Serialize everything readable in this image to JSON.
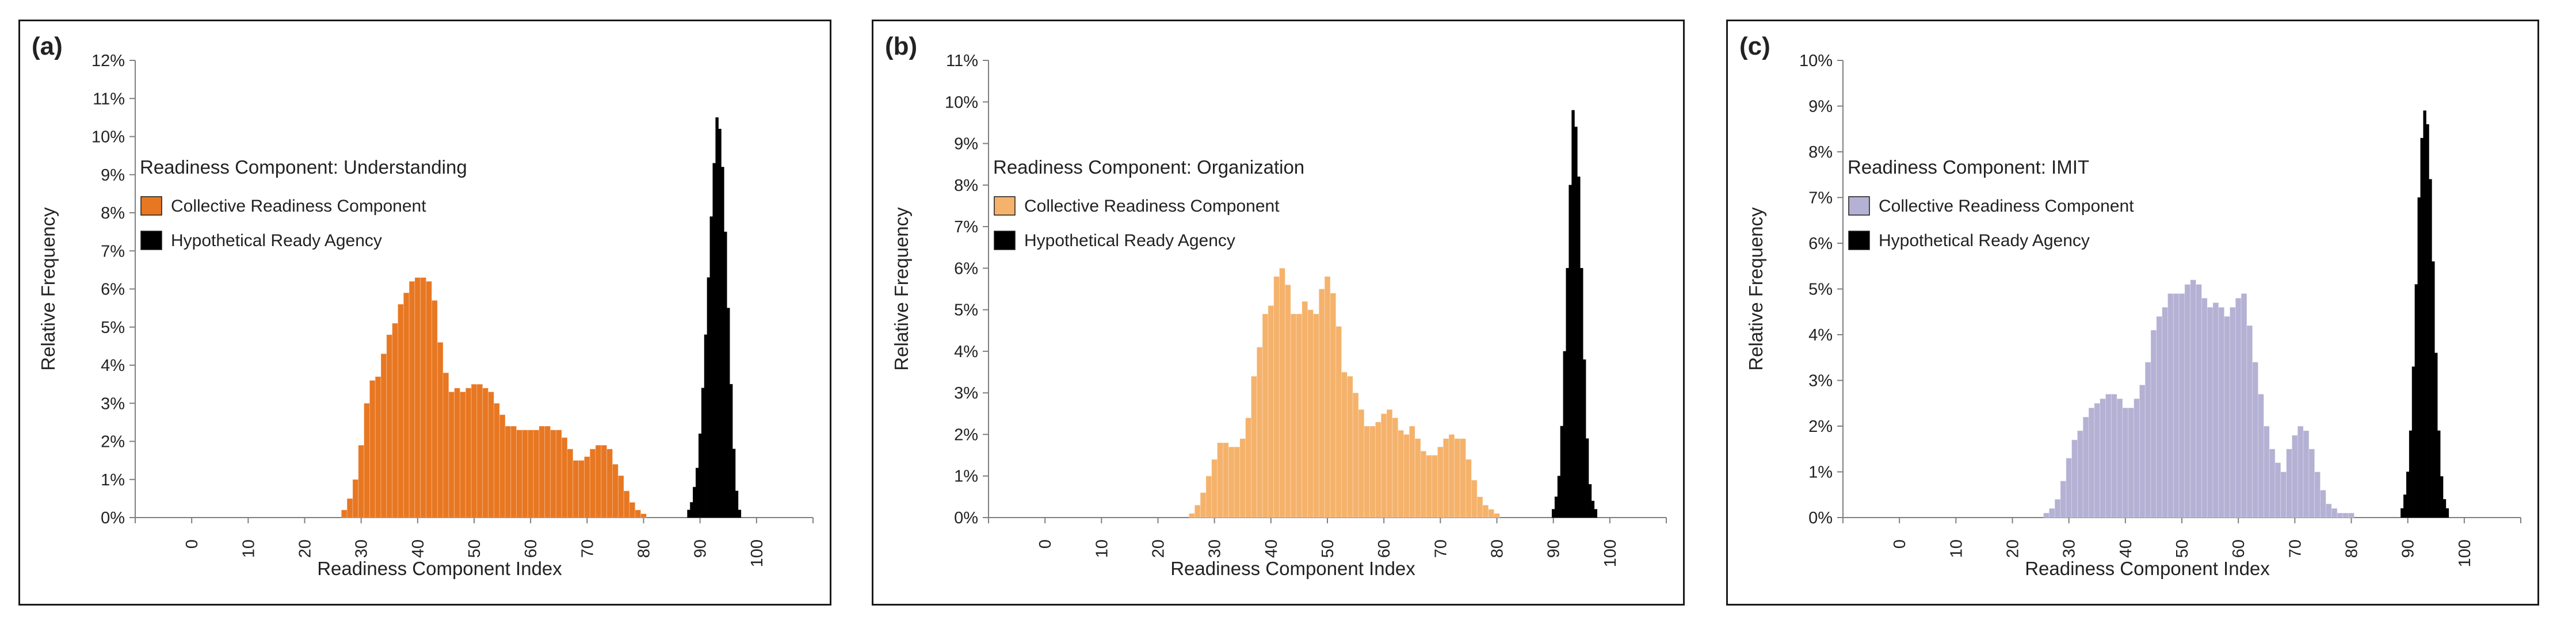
{
  "chart_data": [
    {
      "type": "bar",
      "panel_tag": "(a)",
      "legend_title": "Readiness Component: Understanding",
      "xlabel": "Readiness Component Index",
      "ylabel": "Relative Frequency",
      "xlim": [
        -10,
        110
      ],
      "ylim": [
        0,
        12
      ],
      "yticks": [
        "0%",
        "1%",
        "2%",
        "3%",
        "4%",
        "5%",
        "6%",
        "7%",
        "8%",
        "9%",
        "10%",
        "11%",
        "12%"
      ],
      "xticks": [
        "0",
        "10",
        "20",
        "30",
        "40",
        "50",
        "60",
        "70",
        "80",
        "90",
        "100"
      ],
      "grid": false,
      "legend_position": "top-left",
      "series": [
        {
          "name": "Collective Readiness Component",
          "color": "#e87722",
          "x": [
            27,
            28,
            29,
            30,
            31,
            32,
            33,
            34,
            35,
            36,
            37,
            38,
            39,
            40,
            41,
            42,
            43,
            44,
            45,
            46,
            47,
            48,
            49,
            50,
            51,
            52,
            53,
            54,
            55,
            56,
            57,
            58,
            59,
            60,
            61,
            62,
            63,
            64,
            65,
            66,
            67,
            68,
            69,
            70,
            71,
            72,
            73,
            74,
            75,
            76,
            77,
            78,
            79,
            80
          ],
          "values": [
            0.2,
            0.5,
            1.0,
            1.9,
            3.0,
            3.6,
            3.7,
            4.3,
            4.8,
            5.1,
            5.6,
            5.9,
            6.2,
            6.3,
            6.3,
            6.2,
            5.7,
            4.6,
            3.8,
            3.3,
            3.4,
            3.3,
            3.4,
            3.5,
            3.5,
            3.4,
            3.3,
            3.0,
            2.7,
            2.4,
            2.4,
            2.3,
            2.3,
            2.3,
            2.3,
            2.4,
            2.4,
            2.3,
            2.3,
            2.1,
            1.8,
            1.5,
            1.5,
            1.6,
            1.8,
            1.9,
            1.9,
            1.8,
            1.4,
            1.1,
            0.7,
            0.4,
            0.2,
            0.1
          ]
        },
        {
          "name": "Hypothetical Ready Agency",
          "color": "#000000",
          "x": [
            88,
            88.5,
            89,
            89.5,
            90,
            90.5,
            91,
            91.5,
            92,
            92.5,
            93,
            93.5,
            94,
            94.5,
            95,
            95.5,
            96,
            96.5,
            97
          ],
          "values": [
            0.2,
            0.4,
            0.8,
            1.3,
            2.2,
            3.4,
            4.8,
            6.3,
            7.9,
            9.3,
            10.5,
            10.2,
            9.2,
            7.5,
            5.5,
            3.5,
            1.8,
            0.7,
            0.2
          ]
        }
      ]
    },
    {
      "type": "bar",
      "panel_tag": "(b)",
      "legend_title": "Readiness Component: Organization",
      "xlabel": "Readiness Component Index",
      "ylabel": "Relative Frequency",
      "xlim": [
        -10,
        110
      ],
      "ylim": [
        0,
        11
      ],
      "yticks": [
        "0%",
        "1%",
        "2%",
        "3%",
        "4%",
        "5%",
        "6%",
        "7%",
        "8%",
        "9%",
        "10%",
        "11%"
      ],
      "xticks": [
        "0",
        "10",
        "20",
        "30",
        "40",
        "50",
        "60",
        "70",
        "80",
        "90",
        "100"
      ],
      "grid": false,
      "legend_position": "top-left",
      "series": [
        {
          "name": "Collective Readiness Component",
          "color": "#f5b26b",
          "x": [
            26,
            27,
            28,
            29,
            30,
            31,
            32,
            33,
            34,
            35,
            36,
            37,
            38,
            39,
            40,
            41,
            42,
            43,
            44,
            45,
            46,
            47,
            48,
            49,
            50,
            51,
            52,
            53,
            54,
            55,
            56,
            57,
            58,
            59,
            60,
            61,
            62,
            63,
            64,
            65,
            66,
            67,
            68,
            69,
            70,
            71,
            72,
            73,
            74,
            75,
            76,
            77,
            78,
            79,
            80
          ],
          "values": [
            0.1,
            0.3,
            0.6,
            1.0,
            1.4,
            1.8,
            1.8,
            1.7,
            1.7,
            1.9,
            2.4,
            3.4,
            4.1,
            4.9,
            5.1,
            5.8,
            6.0,
            5.6,
            4.9,
            4.9,
            5.2,
            5.0,
            4.9,
            5.5,
            5.8,
            5.4,
            4.6,
            3.5,
            3.4,
            3.0,
            2.6,
            2.2,
            2.2,
            2.3,
            2.5,
            2.6,
            2.4,
            2.1,
            2.0,
            2.2,
            1.9,
            1.6,
            1.5,
            1.5,
            1.7,
            1.9,
            2.0,
            1.9,
            1.9,
            1.4,
            0.9,
            0.5,
            0.3,
            0.2,
            0.1
          ]
        },
        {
          "name": "Hypothetical Ready Agency",
          "color": "#000000",
          "x": [
            90,
            90.5,
            91,
            91.5,
            92,
            92.5,
            93,
            93.5,
            94,
            94.5,
            95,
            95.5,
            96,
            96.5,
            97,
            97.5
          ],
          "values": [
            0.2,
            0.5,
            1.0,
            2.2,
            4.0,
            6.0,
            8.0,
            9.8,
            9.4,
            8.2,
            6.0,
            3.8,
            1.9,
            0.8,
            0.4,
            0.2
          ]
        }
      ]
    },
    {
      "type": "bar",
      "panel_tag": "(c)",
      "legend_title": "Readiness Component: IMIT",
      "xlabel": "Readiness Component Index",
      "ylabel": "Relative Frequency",
      "xlim": [
        -10,
        110
      ],
      "ylim": [
        0,
        10
      ],
      "yticks": [
        "0%",
        "1%",
        "2%",
        "3%",
        "4%",
        "5%",
        "6%",
        "7%",
        "8%",
        "9%",
        "10%"
      ],
      "xticks": [
        "0",
        "10",
        "20",
        "30",
        "40",
        "50",
        "60",
        "70",
        "80",
        "90",
        "100"
      ],
      "grid": false,
      "legend_position": "top-left",
      "series": [
        {
          "name": "Collective Readiness Component",
          "color": "#b4b1d4",
          "x": [
            26,
            27,
            28,
            29,
            30,
            31,
            32,
            33,
            34,
            35,
            36,
            37,
            38,
            39,
            40,
            41,
            42,
            43,
            44,
            45,
            46,
            47,
            48,
            49,
            50,
            51,
            52,
            53,
            54,
            55,
            56,
            57,
            58,
            59,
            60,
            61,
            62,
            63,
            64,
            65,
            66,
            67,
            68,
            69,
            70,
            71,
            72,
            73,
            74,
            75,
            76,
            77,
            78,
            79,
            80
          ],
          "values": [
            0.1,
            0.2,
            0.4,
            0.8,
            1.3,
            1.7,
            1.9,
            2.2,
            2.4,
            2.5,
            2.6,
            2.7,
            2.7,
            2.6,
            2.4,
            2.4,
            2.6,
            2.9,
            3.4,
            4.1,
            4.4,
            4.6,
            4.9,
            4.9,
            4.9,
            5.1,
            5.2,
            5.1,
            4.8,
            4.6,
            4.7,
            4.6,
            4.4,
            4.6,
            4.8,
            4.9,
            4.2,
            3.4,
            2.7,
            2.0,
            1.5,
            1.2,
            1.0,
            1.5,
            1.8,
            2.0,
            1.9,
            1.5,
            1.0,
            0.6,
            0.3,
            0.2,
            0.1,
            0.1,
            0.1
          ]
        },
        {
          "name": "Hypothetical Ready Agency",
          "color": "#000000",
          "x": [
            89,
            89.5,
            90,
            90.5,
            91,
            91.5,
            92,
            92.5,
            93,
            93.5,
            94,
            94.5,
            95,
            95.5,
            96,
            96.5,
            97
          ],
          "values": [
            0.2,
            0.5,
            1.0,
            1.9,
            3.3,
            5.1,
            7.0,
            8.3,
            8.9,
            8.6,
            7.4,
            5.6,
            3.6,
            1.9,
            0.9,
            0.4,
            0.2
          ]
        }
      ]
    }
  ]
}
